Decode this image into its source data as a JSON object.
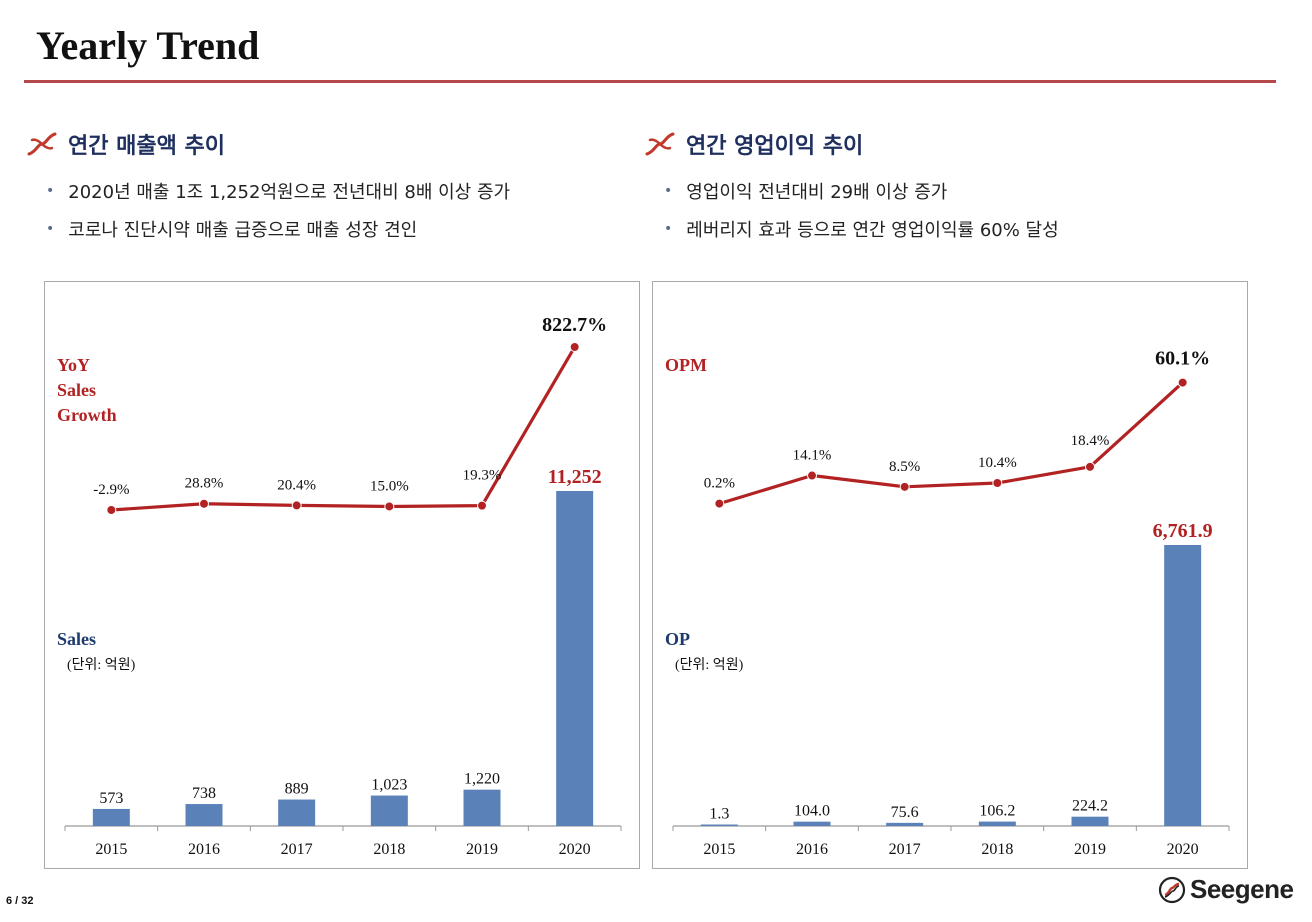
{
  "page": {
    "title": "Yearly Trend",
    "page_number": "6 / 32",
    "brand": "Seegene"
  },
  "colors": {
    "accent_red": "#b22222",
    "bar_blue": "#5b82b8",
    "navy": "#1f3a6e",
    "rule": "#b5484a"
  },
  "left_section": {
    "heading": "연간 매출액 추이",
    "bullets": [
      "2020년 매출 1조 1,252억원으로 전년대비 8배 이상 증가",
      "코로나 진단시약 매출 급증으로 매출 성장 견인"
    ]
  },
  "right_section": {
    "heading": "연간 영업이익 추이",
    "bullets": [
      "영업이익 전년대비 29배 이상 증가",
      "레버리지 효과 등으로 연간 영업이익률 60% 달성"
    ]
  },
  "chart_data": [
    {
      "type": "bar",
      "title": "연간 매출액 추이",
      "categories": [
        "2015",
        "2016",
        "2017",
        "2018",
        "2019",
        "2020"
      ],
      "series": [
        {
          "name": "Sales",
          "unit": "(단위: 억원)",
          "type": "bar",
          "values": [
            573,
            738,
            889,
            1023,
            1220,
            11252
          ],
          "labels": [
            "573",
            "738",
            "889",
            "1,023",
            "1,220",
            "11,252"
          ]
        },
        {
          "name": "YoY Sales Growth",
          "type": "line",
          "values": [
            -2.9,
            28.8,
            20.4,
            15.0,
            19.3,
            822.7
          ],
          "labels": [
            "-2.9%",
            "28.8%",
            "20.4%",
            "15.0%",
            "19.3%",
            "822.7%"
          ]
        }
      ],
      "line_legend": [
        "YoY",
        "Sales",
        "Growth"
      ],
      "bar_legend": "Sales",
      "unit_note": "(단위: 억원)"
    },
    {
      "type": "bar",
      "title": "연간 영업이익 추이",
      "categories": [
        "2015",
        "2016",
        "2017",
        "2018",
        "2019",
        "2020"
      ],
      "series": [
        {
          "name": "OP",
          "unit": "(단위: 억원)",
          "type": "bar",
          "values": [
            1.3,
            104.0,
            75.6,
            106.2,
            224.2,
            6761.9
          ],
          "labels": [
            "1.3",
            "104.0",
            "75.6",
            "106.2",
            "224.2",
            "6,761.9"
          ]
        },
        {
          "name": "OPM",
          "type": "line",
          "values": [
            0.2,
            14.1,
            8.5,
            10.4,
            18.4,
            60.1
          ],
          "labels": [
            "0.2%",
            "14.1%",
            "8.5%",
            "10.4%",
            "18.4%",
            "60.1%"
          ]
        }
      ],
      "line_legend": [
        "OPM"
      ],
      "bar_legend": "OP",
      "unit_note": "(단위: 억원)"
    }
  ]
}
